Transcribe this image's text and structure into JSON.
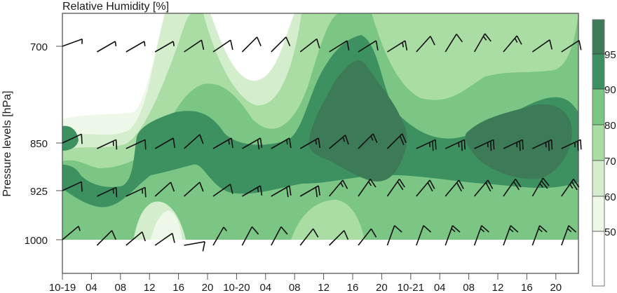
{
  "chart_data": {
    "type": "heatmap",
    "subtype": "filled-contour time-pressure cross-section with wind barbs",
    "title": "Relative Humidity [%]",
    "xlabel": "",
    "ylabel": "Pressure levels [hPa]",
    "x_ticks": [
      "10-19",
      "04",
      "08",
      "12",
      "16",
      "20",
      "10-20",
      "04",
      "08",
      "12",
      "16",
      "20",
      "10-21",
      "04",
      "08",
      "12",
      "16",
      "20"
    ],
    "y_ticks": [
      "700",
      "850",
      "925",
      "1000"
    ],
    "y_tick_values": [
      700,
      850,
      925,
      1000
    ],
    "colorbar": {
      "ticks": [
        "50",
        "60",
        "70",
        "80",
        "90",
        "95"
      ],
      "levels": [
        50,
        60,
        70,
        80,
        90,
        95
      ],
      "colors": [
        "#ffffff",
        "#edf8e9",
        "#d4eecd",
        "#aadda4",
        "#7bc585",
        "#3d9161",
        "#3c7a58"
      ]
    },
    "grid": false,
    "legend_position": "right (colorbar)",
    "wind_barbs": {
      "700": {
        "count": 18,
        "typical_speed_kt": "5-15"
      },
      "850": {
        "count": 18,
        "typical_speed_kt": "10-30"
      },
      "925": {
        "count": 18,
        "typical_speed_kt": "10-30"
      },
      "1000": {
        "count": 18,
        "typical_speed_kt": "5-20"
      }
    },
    "notes": "Highest humidity (>95%) around 850 hPa near 10-20 12–20h and 10-21 08–18h; driest (<50%) at 700 hPa on 10-19 and 10-20 morning."
  }
}
